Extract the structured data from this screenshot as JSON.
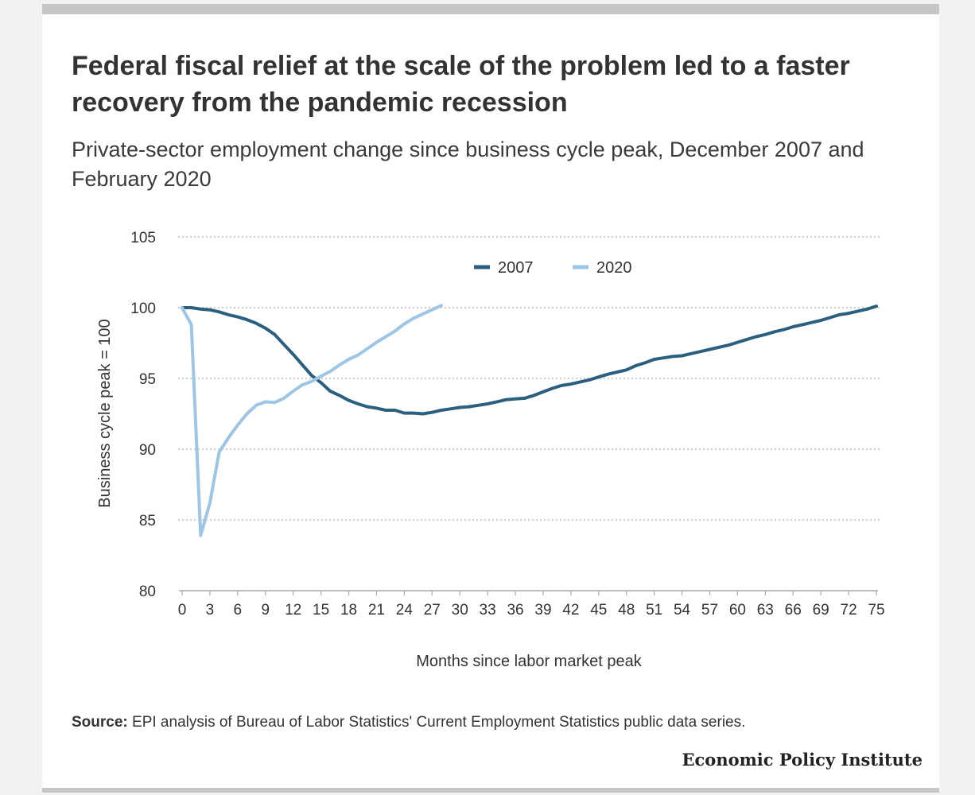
{
  "header": {
    "title": "Federal fiscal relief at the scale of the problem led to a faster recovery from the pandemic recession",
    "subtitle": "Private-sector employment change since business cycle peak, December 2007 and February 2020"
  },
  "footer": {
    "source_label": "Source:",
    "source_text": " EPI analysis of Bureau of Labor Statistics' Current Employment Statistics public data series.",
    "publisher": "Economic Policy Institute"
  },
  "colors": {
    "series_2007": "#2b5f80",
    "series_2020": "#9dc6e6",
    "grid": "#cfcfcf",
    "text": "#333333"
  },
  "chart_data": {
    "type": "line",
    "xlabel": "Months since labor market peak",
    "ylabel": "Business cycle peak = 100",
    "xlim": [
      0,
      75
    ],
    "ylim": [
      80,
      105
    ],
    "x_ticks": [
      0,
      3,
      6,
      9,
      12,
      15,
      18,
      21,
      24,
      27,
      30,
      33,
      36,
      39,
      42,
      45,
      48,
      51,
      54,
      57,
      60,
      63,
      66,
      69,
      72,
      75
    ],
    "y_ticks": [
      80,
      85,
      90,
      95,
      100,
      105
    ],
    "grid": "horizontal dotted",
    "legend_position": "top-center",
    "series": [
      {
        "name": "2007",
        "x": [
          0,
          1,
          2,
          3,
          4,
          5,
          6,
          7,
          8,
          9,
          10,
          11,
          12,
          13,
          14,
          15,
          16,
          17,
          18,
          19,
          20,
          21,
          22,
          23,
          24,
          25,
          26,
          27,
          28,
          29,
          30,
          31,
          32,
          33,
          34,
          35,
          36,
          37,
          38,
          39,
          40,
          41,
          42,
          43,
          44,
          45,
          46,
          47,
          48,
          49,
          50,
          51,
          52,
          53,
          54,
          55,
          56,
          57,
          58,
          59,
          60,
          61,
          62,
          63,
          64,
          65,
          66,
          67,
          68,
          69,
          70,
          71,
          72,
          73,
          74,
          75
        ],
        "values": [
          100,
          100,
          99.9,
          99.85,
          99.7,
          99.5,
          99.35,
          99.15,
          98.9,
          98.55,
          98.1,
          97.4,
          96.7,
          95.95,
          95.2,
          94.7,
          94.1,
          93.8,
          93.45,
          93.2,
          93.0,
          92.9,
          92.75,
          92.75,
          92.55,
          92.55,
          92.5,
          92.6,
          92.75,
          92.85,
          92.95,
          93.0,
          93.1,
          93.2,
          93.35,
          93.5,
          93.55,
          93.6,
          93.8,
          94.05,
          94.3,
          94.5,
          94.6,
          94.75,
          94.9,
          95.1,
          95.3,
          95.45,
          95.6,
          95.9,
          96.1,
          96.35,
          96.45,
          96.55,
          96.6,
          96.75,
          96.9,
          97.05,
          97.2,
          97.35,
          97.55,
          97.75,
          97.95,
          98.1,
          98.3,
          98.45,
          98.65,
          98.8,
          98.95,
          99.1,
          99.3,
          99.5,
          99.6,
          99.75,
          99.9,
          100.1
        ]
      },
      {
        "name": "2020",
        "x": [
          0,
          1,
          2,
          3,
          4,
          5,
          6,
          7,
          8,
          9,
          10,
          11,
          12,
          13,
          14,
          15,
          16,
          17,
          18,
          19,
          20,
          21,
          22,
          23,
          24,
          25,
          26,
          27,
          28
        ],
        "values": [
          100,
          98.8,
          83.9,
          86.2,
          89.8,
          90.8,
          91.7,
          92.5,
          93.1,
          93.35,
          93.3,
          93.6,
          94.1,
          94.55,
          94.8,
          95.15,
          95.5,
          95.95,
          96.35,
          96.65,
          97.1,
          97.55,
          97.95,
          98.35,
          98.85,
          99.25,
          99.55,
          99.85,
          100.15
        ]
      }
    ]
  }
}
